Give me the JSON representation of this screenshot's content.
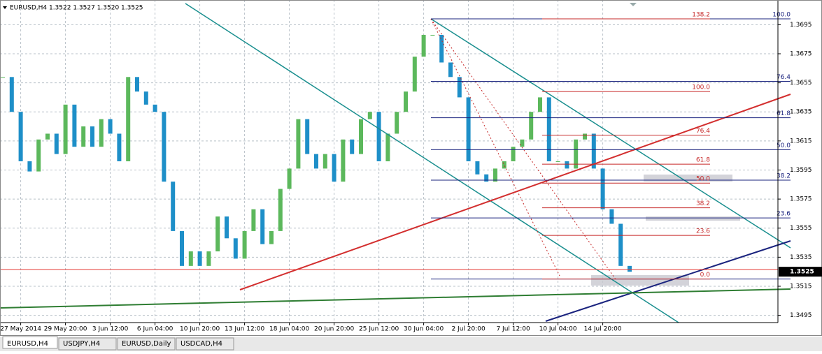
{
  "chart_data": {
    "type": "candlestick",
    "title": "EURUSD,H4  1.3522 1.3527 1.3520 1.3525",
    "categories": [
      null,
      null,
      "27 May 2014",
      null,
      null,
      null,
      null,
      "29 May 20:00",
      null,
      null,
      null,
      null,
      "3 Jun 12:00",
      null,
      null,
      null,
      null,
      "6 Jun 04:00",
      null,
      null,
      null,
      null,
      "10 Jun 20:00",
      null,
      null,
      null,
      null,
      "13 Jun 12:00",
      null,
      null,
      null,
      null,
      "18 Jun 04:00",
      null,
      null,
      null,
      null,
      "20 Jun 20:00",
      null,
      null,
      null,
      null,
      "25 Jun 12:00",
      null,
      null,
      null,
      null,
      "30 Jun 04:00",
      null,
      null,
      null,
      null,
      "2 Jul 20:00",
      null,
      null,
      null,
      null,
      "7 Jul 12:00",
      null,
      null,
      null,
      null,
      "10 Jul 04:00",
      null,
      null,
      null,
      null,
      "14 Jul 20:00",
      null,
      null,
      null
    ],
    "values": [
      1.3659,
      1.3635,
      1.3601,
      1.3594,
      1.3616,
      1.362,
      1.3606,
      1.364,
      1.3611,
      1.3625,
      1.3611,
      1.363,
      1.362,
      1.3601,
      1.3659,
      1.3649,
      1.364,
      1.3635,
      1.3587,
      1.3553,
      1.3529,
      1.3539,
      1.3529,
      1.3539,
      1.3563,
      1.3548,
      1.3534,
      1.3553,
      1.3568,
      1.3544,
      1.3553,
      1.3582,
      1.3596,
      1.363,
      1.3606,
      1.3596,
      1.3606,
      1.3587,
      1.3616,
      1.3606,
      1.363,
      1.3635,
      1.3601,
      1.362,
      1.3635,
      1.3649,
      1.3673,
      1.3688,
      1.3688,
      1.3669,
      1.3659,
      1.3645,
      1.3601,
      1.3592,
      1.3587,
      1.3596,
      1.3601,
      1.3611,
      1.3616,
      1.3635,
      1.3645,
      1.3601,
      1.3601,
      1.3596,
      1.3616,
      1.362,
      1.3596,
      1.3568,
      1.3558,
      1.3529,
      1.3525
    ],
    "up_color": "#5cb85c",
    "down_color": "#1e8fc8",
    "ylim": [
      1.349,
      1.3712
    ],
    "yticks": [
      1.3695,
      1.3675,
      1.3655,
      1.3635,
      1.3615,
      1.3595,
      1.3575,
      1.3555,
      1.3535,
      1.3515,
      1.3495
    ],
    "grid": true,
    "fibonacci": [
      {
        "color": "#1a237e",
        "levels": [
          {
            "value": 100,
            "label": "100.0"
          },
          {
            "value": 76.4,
            "label": "76.4"
          },
          {
            "value": 61.8,
            "label": "61.8"
          },
          {
            "value": 50,
            "label": "50.0"
          },
          {
            "value": 38.2,
            "label": "38.2"
          },
          {
            "value": 23.6,
            "label": "23.6"
          },
          {
            "value": 0,
            "label": "0.0"
          }
        ],
        "prices": [
          1.3699,
          1.3656,
          1.3631,
          1.3609,
          1.3588,
          1.3562,
          1.352
        ]
      },
      {
        "color": "#c62828",
        "levels": [
          {
            "value": 138.2,
            "label": "138.2"
          },
          {
            "value": 100,
            "label": "100.0"
          },
          {
            "value": 76.4,
            "label": "76.4"
          },
          {
            "value": 61.8,
            "label": "61.8"
          },
          {
            "value": 50,
            "label": "50.0"
          },
          {
            "value": 38.2,
            "label": "38.2"
          },
          {
            "value": 23.6,
            "label": "23.6"
          },
          {
            "value": 0,
            "label": "0.0"
          }
        ],
        "prices": [
          1.3699,
          1.3649,
          1.3619,
          1.3599,
          1.3586,
          1.3569,
          1.355,
          1.352
        ]
      }
    ]
  },
  "tabs": [
    "EURUSD,H4",
    "USDJPY,H4",
    "EURUSD,Daily",
    "USDCAD,H4"
  ]
}
